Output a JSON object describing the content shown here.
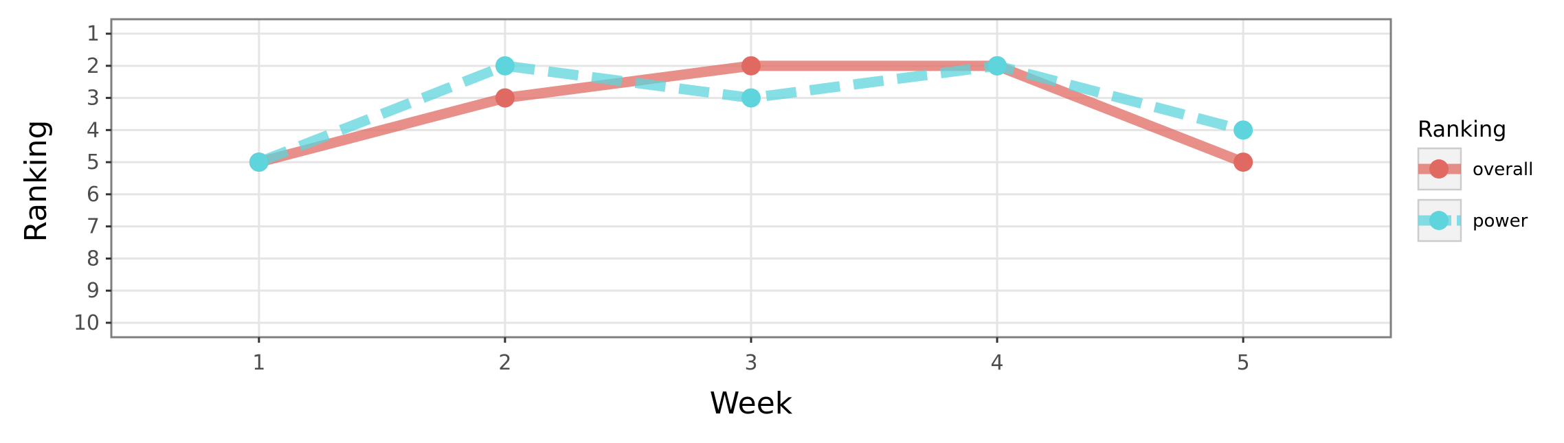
{
  "chart_data": {
    "type": "line",
    "xlabel": "Week",
    "ylabel": "Ranking",
    "x": [
      1,
      2,
      3,
      4,
      5
    ],
    "x_ticks": [
      "1",
      "2",
      "3",
      "4",
      "5"
    ],
    "xlim": [
      0.4,
      5.6
    ],
    "y_ticks": [
      "1",
      "2",
      "3",
      "4",
      "5",
      "6",
      "7",
      "8",
      "9",
      "10"
    ],
    "ylim": [
      10.45,
      0.55
    ],
    "y_reversed": true,
    "grid": true,
    "legend": {
      "title": "Ranking",
      "placement": "right"
    },
    "series": [
      {
        "name": "overall",
        "values": [
          5,
          3,
          2,
          2,
          5
        ],
        "color": "#E06A62",
        "line_style": "solid"
      },
      {
        "name": "power",
        "values": [
          5,
          2,
          3,
          2,
          4
        ],
        "color": "#5ED4DC",
        "line_style": "dashed"
      }
    ]
  }
}
